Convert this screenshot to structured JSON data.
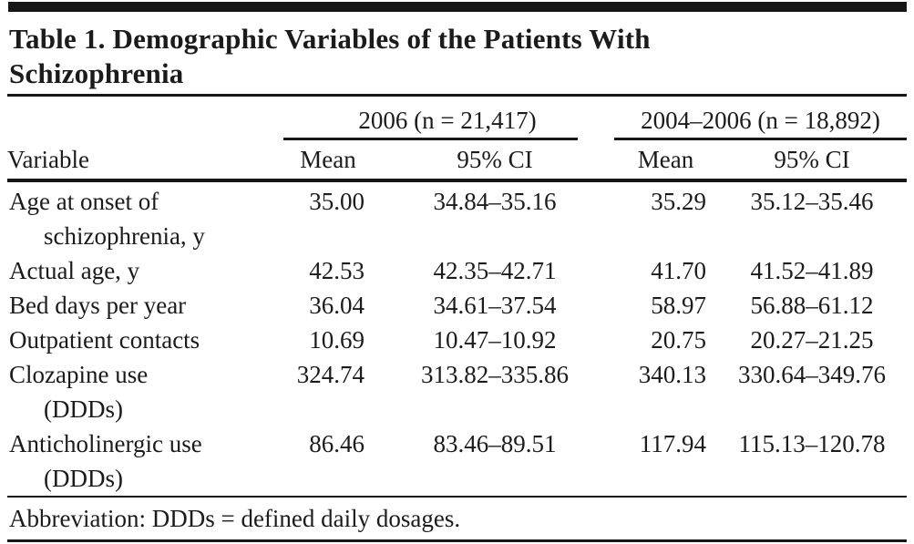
{
  "page": {
    "title_line1": "Table 1. Demographic Variables of the Patients With",
    "title_line2": "Schizophrenia",
    "footnote": "Abbreviation: DDDs = defined daily dosages."
  },
  "table": {
    "group_headers": [
      "2006 (n = 21,417)",
      "2004–2006 (n = 18,892)"
    ],
    "columns": [
      "Variable",
      "Mean",
      "95% CI",
      "Mean",
      "95% CI"
    ],
    "rows": [
      {
        "variable": [
          "Age at onset of",
          "schizophrenia, y"
        ],
        "mean_2006": "35.00",
        "ci_2006": "34.84–35.16",
        "mean_2004_2006": "35.29",
        "ci_2004_2006": "35.12–35.46"
      },
      {
        "variable": [
          "Actual age, y"
        ],
        "mean_2006": "42.53",
        "ci_2006": "42.35–42.71",
        "mean_2004_2006": "41.70",
        "ci_2004_2006": "41.52–41.89"
      },
      {
        "variable": [
          "Bed days per year"
        ],
        "mean_2006": "36.04",
        "ci_2006": "34.61–37.54",
        "mean_2004_2006": "58.97",
        "ci_2004_2006": "56.88–61.12"
      },
      {
        "variable": [
          "Outpatient contacts"
        ],
        "mean_2006": "10.69",
        "ci_2006": "10.47–10.92",
        "mean_2004_2006": "20.75",
        "ci_2004_2006": "20.27–21.25"
      },
      {
        "variable": [
          "Clozapine use",
          "(DDDs)"
        ],
        "mean_2006": "324.74",
        "ci_2006": "313.82–335.86",
        "mean_2004_2006": "340.13",
        "ci_2004_2006": "330.64–349.76"
      },
      {
        "variable": [
          "Anticholinergic use",
          "(DDDs)"
        ],
        "mean_2006": "86.46",
        "ci_2006": "83.46–89.51",
        "mean_2004_2006": "117.94",
        "ci_2004_2006": "115.13–120.78"
      }
    ]
  },
  "colors": {
    "text": "#1b1b1b",
    "rule": "#161616",
    "background": "#ffffff"
  }
}
